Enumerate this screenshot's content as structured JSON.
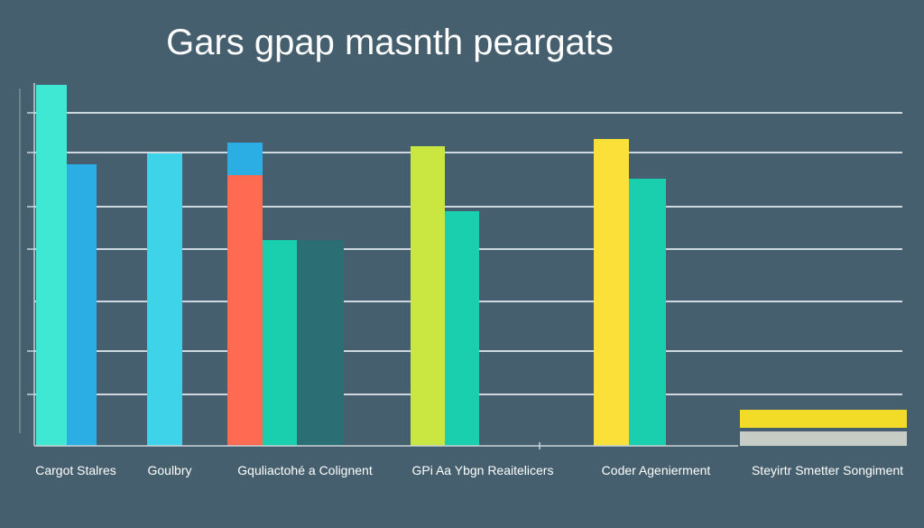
{
  "chart_data": {
    "type": "bar",
    "title": "Gars gpap masnth peargats",
    "xlabel": "",
    "ylabel": "",
    "ylim": [
      0,
      100
    ],
    "grid": true,
    "legend": "none",
    "categories": [
      "Cargot Stalres",
      "Goulbry",
      "Gquliactohé a Colignent",
      "GPi Aa Ybgn Reaitelicers",
      "Coder Agenierment",
      "Steyirtr Smetter Songiment"
    ],
    "bars": [
      {
        "category": 0,
        "slot": 0,
        "value": 100,
        "color": "#3ee8d3"
      },
      {
        "category": 0,
        "slot": 1,
        "value": 78,
        "color": "#2aaee4"
      },
      {
        "category": 1,
        "slot": 0,
        "value": 81,
        "color": "#3fd3ea"
      },
      {
        "category": 2,
        "slot": 0,
        "value": 75,
        "color": "#ff6a52"
      },
      {
        "category": 2,
        "slot": 0,
        "value": 84,
        "base": 75,
        "color": "#2aaee4"
      },
      {
        "category": 2,
        "slot": 1,
        "value": 57,
        "color": "#19cfae"
      },
      {
        "category": 2,
        "slot": 2,
        "value": 57,
        "color": "#2b6f74"
      },
      {
        "category": 3,
        "slot": 0,
        "value": 83,
        "color": "#c9e740"
      },
      {
        "category": 3,
        "slot": 1,
        "value": 65,
        "color": "#19cfae"
      },
      {
        "category": 4,
        "slot": 0,
        "value": 85,
        "color": "#fbe03a"
      },
      {
        "category": 4,
        "slot": 1,
        "value": 74,
        "color": "#19cfae"
      },
      {
        "category": 5,
        "slot": 0,
        "value": 10,
        "color": "#f3dc28"
      },
      {
        "category": 5,
        "slot": 1,
        "value": 4,
        "color": "#c8ccc6"
      }
    ],
    "colors": {
      "background": "#455f6e",
      "grid": "#e8eef2",
      "axis": "#c9d3d8",
      "text": "#ffffff",
      "label": "#ffffff"
    }
  }
}
